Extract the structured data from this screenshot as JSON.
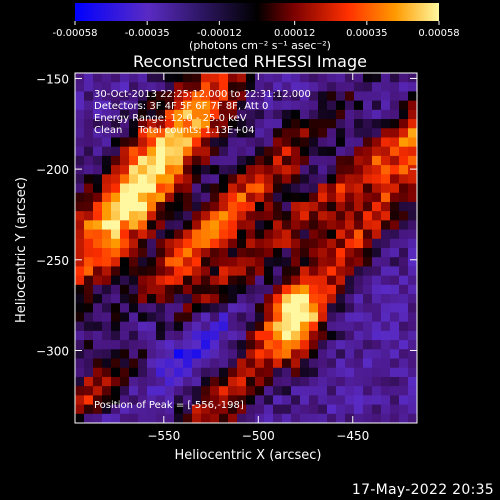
{
  "chart_data": {
    "type": "heatmap",
    "title": "Reconstructed RHESSI Image",
    "xlabel": "Heliocentric X (arcsec)",
    "ylabel": "Heliocentric Y (arcsec)",
    "xlim": [
      -597,
      -416
    ],
    "ylim": [
      -340,
      -147
    ],
    "x_ticks": [
      -550,
      -500,
      -450
    ],
    "y_ticks": [
      -150,
      -200,
      -250,
      -300
    ],
    "colorbar": {
      "min": -0.00058,
      "max": 0.00058,
      "ticks": [
        "-0.00058",
        "-0.00035",
        "-0.00012",
        "0.00012",
        "0.00035",
        "0.00058"
      ],
      "unit_label": "(photons cm⁻² s⁻¹ asec⁻²)",
      "colormap": [
        "#0000ff",
        "#5a2bc4",
        "#000000",
        "#7a0000",
        "#ff3000",
        "#ff9a00",
        "#fff8a0"
      ]
    },
    "annotations": {
      "time": "30-Oct-2013 22:25:12.000 to 22:31:12.000",
      "detectors": "Detectors: 3F 4F 5F 6F 7F 8F, Att 0",
      "energy": "Energy Range: 12.0 - 25.0 keV",
      "clean": "Clean     Total counts: 1.13E+04",
      "peak": "Position of Peak = [-556,-198]"
    },
    "peak": [
      -556,
      -198
    ],
    "grid": false
  },
  "footer_date": "17-May-2022 20:35",
  "colors": {
    "background": "#000000",
    "axes": "#ffffff"
  }
}
